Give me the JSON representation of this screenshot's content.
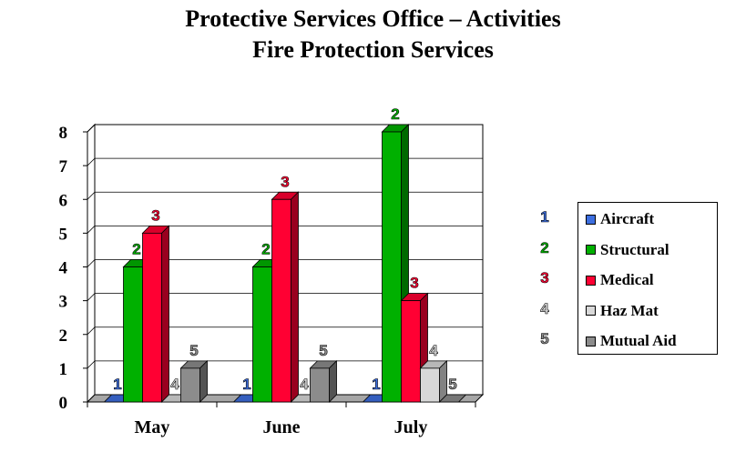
{
  "chart_data": {
    "type": "bar",
    "title": [
      "Protective Services Office – Activities",
      "Fire Protection Services"
    ],
    "categories": [
      "May",
      "June",
      "July"
    ],
    "series": [
      {
        "name": "Aircraft",
        "key": "1",
        "color": "#3d6fe0",
        "values": [
          0,
          0,
          0
        ]
      },
      {
        "name": "Structural",
        "key": "2",
        "color": "#00b000",
        "values": [
          4,
          4,
          8
        ]
      },
      {
        "name": "Medical",
        "key": "3",
        "color": "#ff0033",
        "values": [
          5,
          6,
          3
        ]
      },
      {
        "name": "Haz Mat",
        "key": "4",
        "color": "#d8d8d8",
        "values": [
          0,
          0,
          1
        ]
      },
      {
        "name": "Mutual Aid",
        "key": "5",
        "color": "#8c8c8c",
        "values": [
          1,
          1,
          0
        ]
      }
    ],
    "yticks": [
      "0",
      "1",
      "2",
      "3",
      "4",
      "5",
      "6",
      "7",
      "8"
    ],
    "ylim": [
      0,
      8
    ],
    "grid": true,
    "legend": "right"
  }
}
